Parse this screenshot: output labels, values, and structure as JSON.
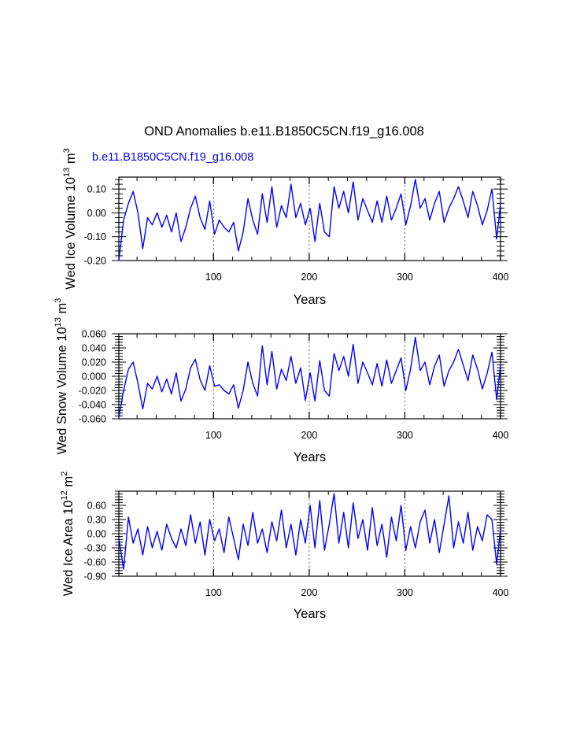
{
  "figure": {
    "title": "OND Anomalies b.e11.B1850C5CN.f19_g16.008",
    "case_label": "b.e11.B1850C5CN.f19_g16.008",
    "case_label_color": "#0000ff",
    "line_color": "#0000ff",
    "refline_color": "#555555"
  },
  "chart_data": [
    {
      "type": "line",
      "ylabel": "Wed Ice Volume 10",
      "ylabel_exp": "13",
      "ylabel_unit": " m",
      "ylabel_unit_exp": "3",
      "xlabel": "Years",
      "xlim": [
        1,
        400
      ],
      "ylim": [
        -0.2,
        0.15
      ],
      "xticks": [
        100,
        200,
        300,
        400
      ],
      "xtick_labels": [
        "100",
        "200",
        "300",
        "400"
      ],
      "yticks": [
        -0.2,
        -0.1,
        0.0,
        0.1
      ],
      "ytick_labels": [
        "-0.20",
        "-0.10",
        "0.00",
        "0.10"
      ],
      "vlines": [
        100,
        200,
        300
      ],
      "series": [
        {
          "name": "Wed Ice Volume",
          "x": [
            1,
            6,
            11,
            16,
            21,
            26,
            31,
            36,
            41,
            46,
            51,
            56,
            61,
            66,
            71,
            76,
            81,
            86,
            91,
            96,
            101,
            106,
            111,
            116,
            121,
            126,
            131,
            136,
            141,
            146,
            151,
            156,
            161,
            166,
            171,
            176,
            181,
            186,
            191,
            196,
            201,
            206,
            211,
            216,
            221,
            226,
            231,
            236,
            241,
            246,
            251,
            256,
            261,
            266,
            271,
            276,
            281,
            286,
            291,
            296,
            301,
            306,
            311,
            316,
            321,
            326,
            331,
            336,
            341,
            346,
            351,
            356,
            361,
            366,
            371,
            376,
            381,
            386,
            391,
            396,
            400
          ],
          "values": [
            -0.2,
            -0.03,
            0.04,
            0.09,
            0.0,
            -0.15,
            -0.02,
            -0.05,
            0.0,
            -0.06,
            -0.01,
            -0.08,
            0.0,
            -0.12,
            -0.06,
            0.02,
            0.07,
            -0.02,
            -0.07,
            0.05,
            -0.09,
            -0.03,
            -0.06,
            -0.08,
            -0.04,
            -0.16,
            -0.08,
            0.06,
            -0.03,
            -0.09,
            0.08,
            -0.04,
            0.11,
            -0.06,
            0.03,
            -0.02,
            0.12,
            -0.02,
            0.04,
            -0.05,
            0.02,
            -0.12,
            0.04,
            -0.08,
            -0.1,
            0.11,
            0.02,
            0.09,
            0.0,
            0.13,
            -0.03,
            0.06,
            0.01,
            -0.04,
            0.05,
            -0.04,
            0.07,
            -0.03,
            0.02,
            0.08,
            -0.05,
            0.03,
            0.14,
            0.02,
            0.06,
            -0.03,
            0.04,
            0.09,
            -0.04,
            0.02,
            0.06,
            0.11,
            0.05,
            -0.02,
            0.09,
            0.03,
            -0.05,
            0.01,
            0.1,
            -0.11,
            0.04
          ]
        }
      ]
    },
    {
      "type": "line",
      "ylabel": "Wed Snow Volume 10",
      "ylabel_exp": "13",
      "ylabel_unit": " m",
      "ylabel_unit_exp": "3",
      "xlabel": "Years",
      "xlim": [
        1,
        400
      ],
      "ylim": [
        -0.06,
        0.06
      ],
      "xticks": [
        100,
        200,
        300,
        400
      ],
      "xtick_labels": [
        "100",
        "200",
        "300",
        "400"
      ],
      "yticks": [
        -0.06,
        -0.04,
        -0.02,
        0.0,
        0.02,
        0.04,
        0.06
      ],
      "ytick_labels": [
        "-0.060",
        "-0.040",
        "-0.020",
        "0.000",
        "0.020",
        "0.040",
        "0.060"
      ],
      "vlines": [
        100,
        200,
        300
      ],
      "series": [
        {
          "name": "Wed Snow Volume",
          "x": [
            1,
            6,
            11,
            16,
            21,
            26,
            31,
            36,
            41,
            46,
            51,
            56,
            61,
            66,
            71,
            76,
            81,
            86,
            91,
            96,
            101,
            106,
            111,
            116,
            121,
            126,
            131,
            136,
            141,
            146,
            151,
            156,
            161,
            166,
            171,
            176,
            181,
            186,
            191,
            196,
            201,
            206,
            211,
            216,
            221,
            226,
            231,
            236,
            241,
            246,
            251,
            256,
            261,
            266,
            271,
            276,
            281,
            286,
            291,
            296,
            301,
            306,
            311,
            316,
            321,
            326,
            331,
            336,
            341,
            346,
            351,
            356,
            361,
            366,
            371,
            376,
            381,
            386,
            391,
            396,
            400
          ],
          "values": [
            -0.058,
            -0.02,
            0.01,
            0.02,
            -0.01,
            -0.046,
            -0.01,
            -0.018,
            0.0,
            -0.022,
            -0.004,
            -0.025,
            0.005,
            -0.035,
            -0.018,
            0.012,
            0.024,
            -0.005,
            -0.02,
            0.015,
            -0.014,
            -0.012,
            -0.02,
            -0.025,
            -0.012,
            -0.045,
            -0.02,
            0.02,
            -0.01,
            -0.028,
            0.043,
            -0.012,
            0.035,
            -0.018,
            0.01,
            -0.006,
            0.028,
            -0.01,
            0.012,
            -0.034,
            0.005,
            -0.035,
            0.022,
            -0.02,
            -0.028,
            0.032,
            0.008,
            0.028,
            0.0,
            0.045,
            -0.01,
            0.02,
            0.005,
            -0.012,
            0.018,
            -0.014,
            0.023,
            -0.01,
            0.008,
            0.026,
            -0.02,
            0.01,
            0.055,
            0.008,
            0.02,
            -0.012,
            0.014,
            0.03,
            -0.014,
            0.008,
            0.02,
            0.038,
            0.016,
            -0.006,
            0.03,
            0.01,
            -0.018,
            0.004,
            0.034,
            -0.033,
            0.016
          ]
        }
      ]
    },
    {
      "type": "line",
      "ylabel": "Wed Ice Area 10",
      "ylabel_exp": "12",
      "ylabel_unit": " m",
      "ylabel_unit_exp": "2",
      "xlabel": "Years",
      "xlim": [
        1,
        400
      ],
      "ylim": [
        -0.9,
        0.9
      ],
      "xticks": [
        100,
        200,
        300,
        400
      ],
      "xtick_labels": [
        "100",
        "200",
        "300",
        "400"
      ],
      "yticks": [
        -0.9,
        -0.6,
        -0.3,
        0.0,
        0.3,
        0.6
      ],
      "ytick_labels": [
        "-0.90",
        "-0.60",
        "-0.30",
        "0.00",
        "0.30",
        "0.60"
      ],
      "vlines": [
        100,
        200,
        300
      ],
      "series": [
        {
          "name": "Wed Ice Area",
          "x": [
            1,
            6,
            11,
            16,
            21,
            26,
            31,
            36,
            41,
            46,
            51,
            56,
            61,
            66,
            71,
            76,
            81,
            86,
            91,
            96,
            101,
            106,
            111,
            116,
            121,
            126,
            131,
            136,
            141,
            146,
            151,
            156,
            161,
            166,
            171,
            176,
            181,
            186,
            191,
            196,
            201,
            206,
            211,
            216,
            221,
            226,
            231,
            236,
            241,
            246,
            251,
            256,
            261,
            266,
            271,
            276,
            281,
            286,
            291,
            296,
            301,
            306,
            311,
            316,
            321,
            326,
            331,
            336,
            341,
            346,
            351,
            356,
            361,
            366,
            371,
            376,
            381,
            386,
            391,
            396,
            400
          ],
          "values": [
            -0.1,
            -0.75,
            0.35,
            -0.2,
            0.1,
            -0.45,
            0.15,
            -0.3,
            0.05,
            -0.35,
            0.2,
            -0.1,
            -0.3,
            0.1,
            -0.25,
            0.4,
            -0.2,
            0.25,
            -0.45,
            0.3,
            -0.15,
            0.1,
            -0.4,
            0.35,
            -0.1,
            -0.55,
            0.2,
            -0.25,
            0.45,
            -0.2,
            0.1,
            -0.4,
            0.25,
            -0.15,
            0.5,
            -0.3,
            0.2,
            -0.45,
            0.3,
            -0.2,
            0.6,
            -0.3,
            0.7,
            -0.35,
            0.2,
            0.85,
            -0.2,
            0.45,
            -0.3,
            0.65,
            -0.1,
            0.3,
            -0.35,
            0.55,
            -0.25,
            0.2,
            -0.5,
            0.35,
            -0.15,
            0.6,
            -0.35,
            0.15,
            -0.3,
            0.25,
            0.5,
            -0.2,
            0.3,
            -0.4,
            0.2,
            0.8,
            -0.3,
            0.25,
            -0.2,
            0.45,
            -0.35,
            0.15,
            -0.15,
            0.4,
            0.3,
            -0.65,
            0.1
          ]
        }
      ]
    }
  ]
}
